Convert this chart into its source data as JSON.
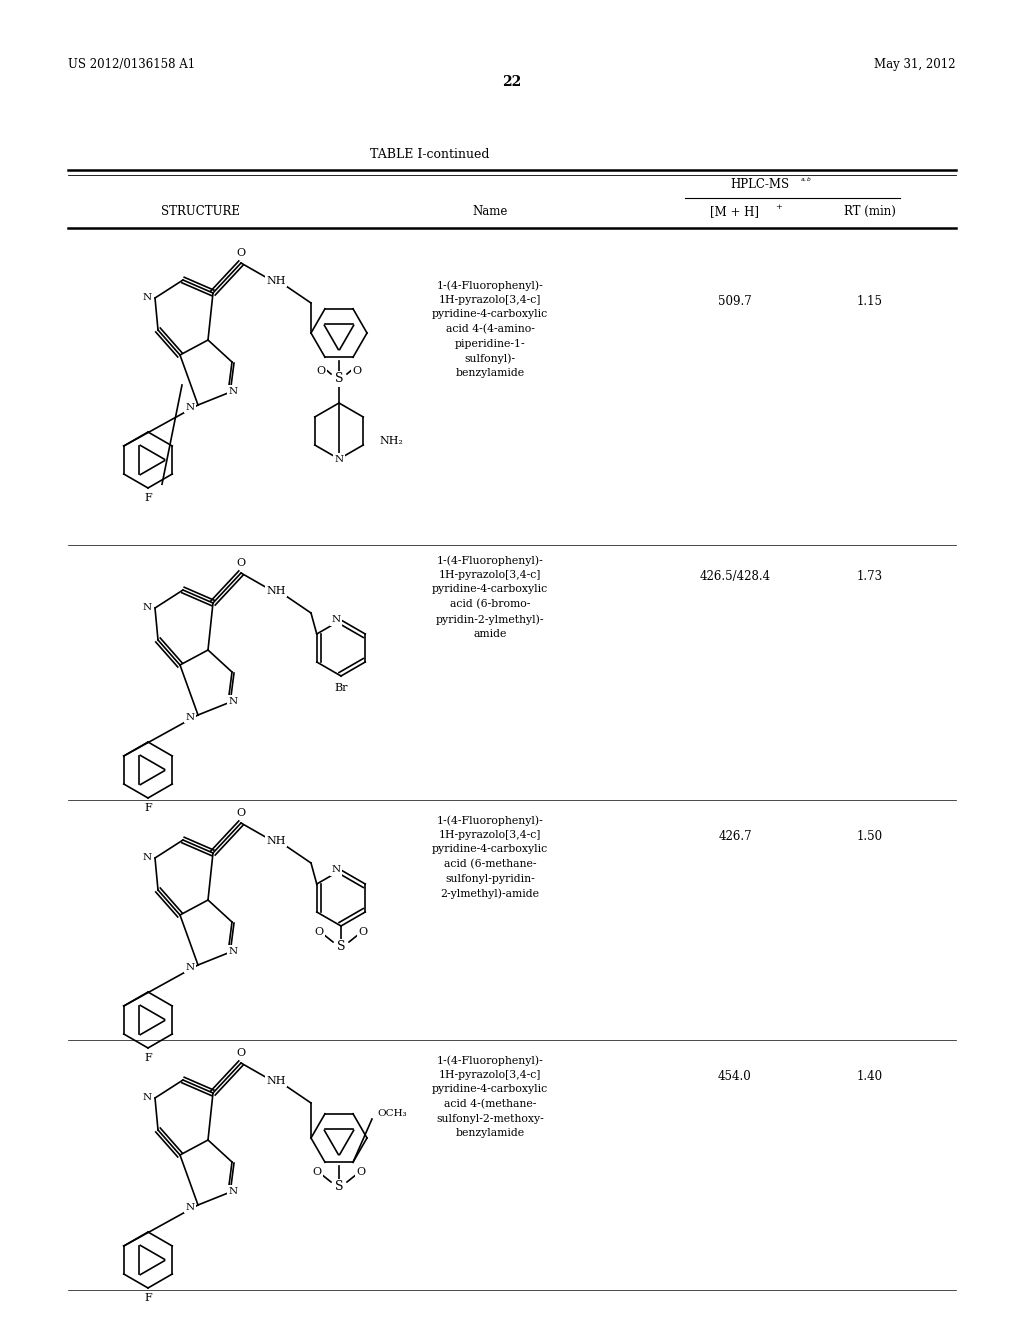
{
  "background_color": "#ffffff",
  "page_width": 10.24,
  "page_height": 13.2,
  "header_left": "US 2012/0136158 A1",
  "header_right": "May 31, 2012",
  "page_number": "22",
  "table_title": "TABLE I-continued",
  "rows": [
    {
      "mz": "509.7",
      "rt": "1.15",
      "name": "1-(4-Fluorophenyl)-\n1H-pyrazolo[3,4-c]\npyridine-4-carboxylic\nacid 4-(4-amino-\npiperidine-1-\nsulfonyl)-\nbenzylamide"
    },
    {
      "mz": "426.5/428.4",
      "rt": "1.73",
      "name": "1-(4-Fluorophenyl)-\n1H-pyrazolo[3,4-c]\npyridine-4-carboxylic\nacid (6-bromo-\npyridin-2-ylmethyl)-\namide"
    },
    {
      "mz": "426.7",
      "rt": "1.50",
      "name": "1-(4-Fluorophenyl)-\n1H-pyrazolo[3,4-c]\npyridine-4-carboxylic\nacid (6-methane-\nsulfonyl-pyridin-\n2-ylmethyl)-amide"
    },
    {
      "mz": "454.0",
      "rt": "1.40",
      "name": "1-(4-Fluorophenyl)-\n1H-pyrazolo[3,4-c]\npyridine-4-carboxylic\nacid 4-(methane-\nsulfonyl-2-methoxy-\nbenzylamide"
    }
  ]
}
